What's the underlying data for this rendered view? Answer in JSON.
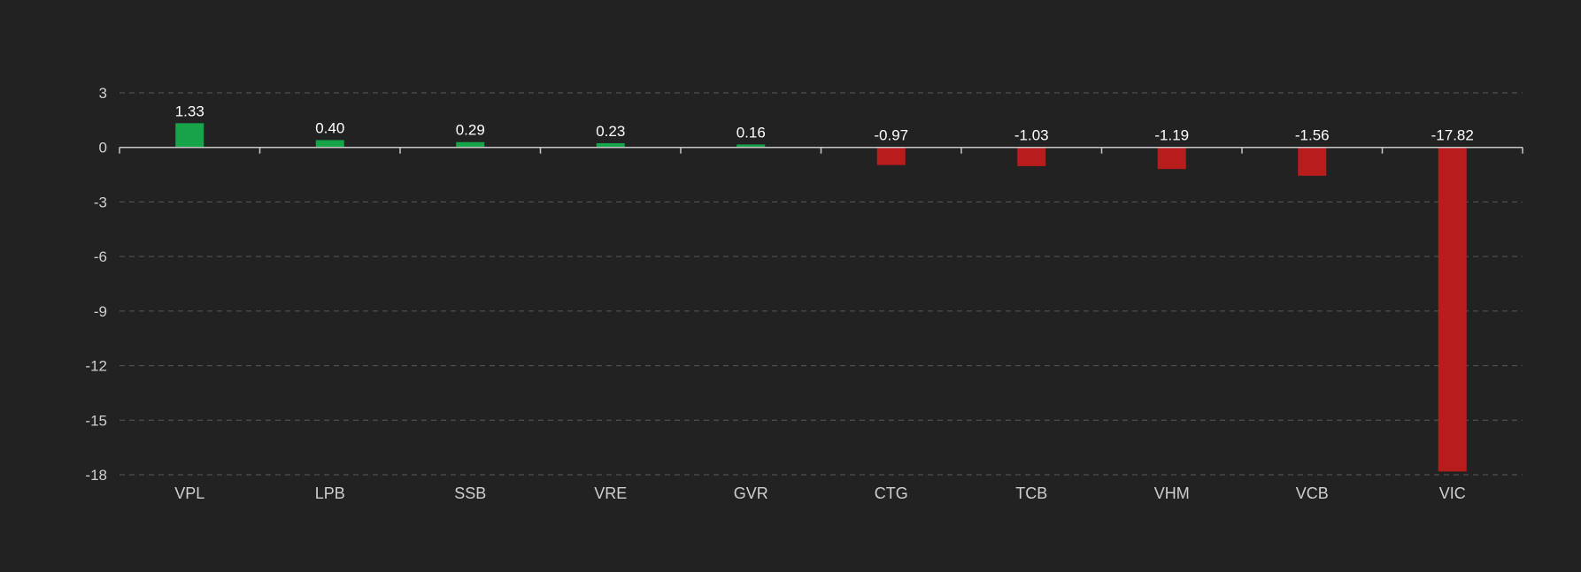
{
  "chart_data": {
    "type": "bar",
    "title": "",
    "xlabel": "",
    "ylabel": "",
    "categories": [
      "VPL",
      "LPB",
      "SSB",
      "VRE",
      "GVR",
      "CTG",
      "TCB",
      "VHM",
      "VCB",
      "VIC"
    ],
    "values": [
      1.33,
      0.4,
      0.29,
      0.23,
      0.16,
      -0.97,
      -1.03,
      -1.19,
      -1.56,
      -17.82
    ],
    "value_labels": [
      "1.33",
      "0.40",
      "0.29",
      "0.23",
      "0.16",
      "-0.97",
      "-1.03",
      "-1.19",
      "-1.56",
      "-17.82"
    ],
    "ylim": [
      -18,
      3
    ],
    "yticks": [
      3,
      0,
      -3,
      -6,
      -9,
      -12,
      -15,
      -18
    ],
    "grid": true,
    "legend": "none",
    "colors": {
      "positive": "#16a34a",
      "negative": "#b91c1c",
      "background": "#222222"
    }
  }
}
